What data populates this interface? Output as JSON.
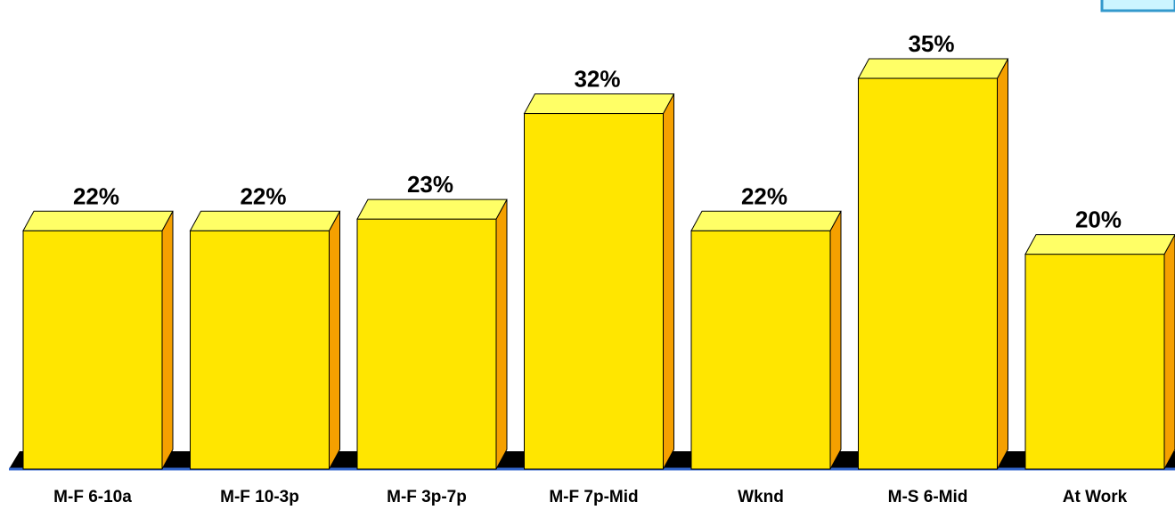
{
  "chart_data": {
    "type": "bar",
    "title": "",
    "xlabel": "",
    "ylabel": "",
    "categories": [
      "M-F 6-10a",
      "M-F 10-3p",
      "M-F 3p-7p",
      "M-F 7p-Mid",
      "Wknd",
      "M-S 6-Mid",
      "At Work"
    ],
    "values": [
      22,
      22,
      23,
      32,
      22,
      35,
      20
    ],
    "value_labels": [
      "22%",
      "22%",
      "23%",
      "32%",
      "22%",
      "35%",
      "20%"
    ],
    "ylim": [
      0,
      40
    ],
    "grid": false,
    "three_d": true,
    "colors": {
      "bar_front": "#ffe600",
      "bar_top": "#ffff66",
      "bar_side": "#f5a000",
      "floor": "#000000",
      "baseline": "#3366cc",
      "corner_box_fill": "#ccf5ff",
      "corner_box_border": "#3399cc"
    }
  }
}
